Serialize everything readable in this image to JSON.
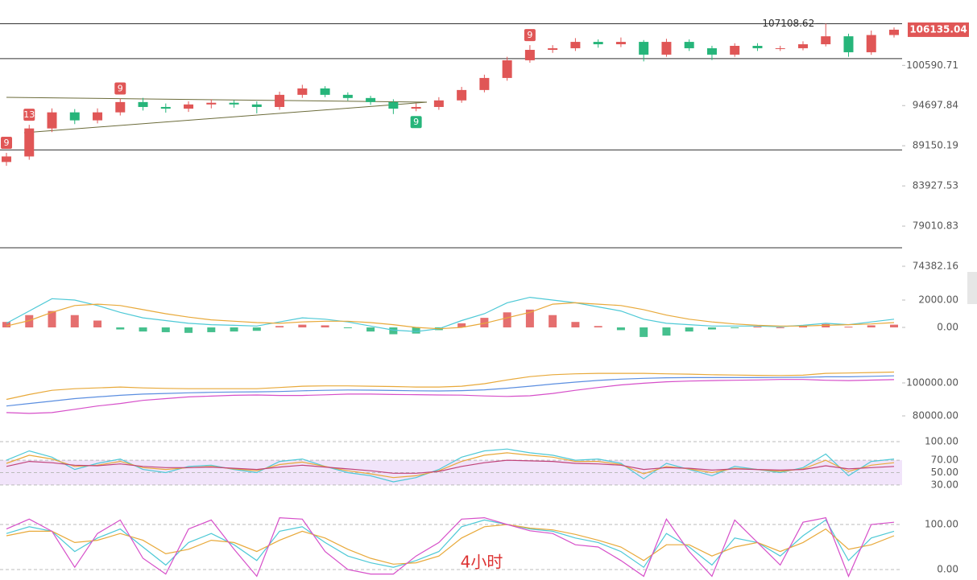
{
  "chart_data": [
    {
      "type": "candlestick",
      "log": true,
      "ylim": [
        73578,
        110980
      ],
      "yticks": [
        100590.71,
        94697.84,
        89150.19,
        83927.53,
        79010.83,
        74382.16
      ],
      "up_color": "#e05656",
      "down_color": "#26b57a",
      "open": [
        87000,
        87730,
        91500,
        93740,
        92620,
        93740,
        95200,
        94500,
        94260,
        94860,
        95100,
        94860,
        94500,
        96240,
        97170,
        96240,
        95780,
        95200,
        94260,
        94500,
        95440,
        96940,
        98710,
        101370,
        102970,
        103220,
        104210,
        103840,
        104210,
        102230,
        104210,
        103220,
        102230,
        103590,
        103220,
        103220,
        103840,
        105090,
        102600,
        105290
      ],
      "high": [
        88200,
        92000,
        94300,
        94200,
        94300,
        95700,
        95800,
        95000,
        95300,
        95600,
        95500,
        95300,
        96700,
        97700,
        97500,
        96600,
        96100,
        95600,
        95000,
        95900,
        97400,
        99200,
        101900,
        103700,
        103700,
        104800,
        104600,
        104900,
        104500,
        104700,
        104600,
        103600,
        104000,
        104000,
        103600,
        104300,
        107108.62,
        105500,
        106000,
        106500
      ],
      "low": [
        86500,
        87300,
        91000,
        92100,
        92200,
        93300,
        94000,
        93700,
        93800,
        94300,
        94400,
        93600,
        94100,
        95800,
        95900,
        95400,
        94800,
        93500,
        93900,
        94100,
        95100,
        96600,
        98300,
        101000,
        102500,
        102800,
        103300,
        103400,
        101200,
        101900,
        102800,
        101400,
        101900,
        102800,
        102800,
        102900,
        103500,
        101900,
        102200,
        104900
      ],
      "close": [
        87730,
        91500,
        93740,
        92620,
        93740,
        95200,
        94500,
        94260,
        94860,
        95100,
        94860,
        94500,
        96240,
        97170,
        96240,
        95780,
        95200,
        94260,
        94500,
        95440,
        96940,
        98710,
        101370,
        102970,
        103220,
        104210,
        103840,
        104210,
        102230,
        104210,
        103220,
        102230,
        103590,
        103220,
        103220,
        103840,
        105090,
        102600,
        105290,
        106135.04
      ],
      "td_above": [
        "9",
        "13",
        null,
        null,
        null,
        "9",
        null,
        null,
        null,
        null,
        null,
        null,
        null,
        null,
        null,
        null,
        null,
        null,
        null,
        null,
        null,
        null,
        null,
        "9",
        null,
        null,
        null,
        null,
        null,
        null,
        null,
        null,
        null,
        null,
        null,
        null,
        null,
        null,
        null,
        null
      ],
      "td_below": [
        null,
        null,
        null,
        null,
        null,
        null,
        null,
        null,
        null,
        null,
        null,
        null,
        null,
        null,
        null,
        null,
        null,
        null,
        "9",
        null,
        null,
        null,
        null,
        null,
        null,
        null,
        null,
        null,
        null,
        null,
        null,
        null,
        null,
        null,
        null,
        null,
        null,
        null,
        null,
        null
      ],
      "levels": [
        107100,
        101620,
        88590,
        76480
      ],
      "high_marker": 107108.62,
      "last_price": 106135.04,
      "watermark": "4小时"
    },
    {
      "type": "combo",
      "ylim": [
        -1353,
        3647
      ],
      "yticks": [
        {
          "value": 2000,
          "label": "2000.00"
        },
        {
          "value": 0,
          "label": "0.00"
        }
      ],
      "series": [
        {
          "kind": "bar",
          "up_color": "#e05656",
          "down_color": "#26b57a",
          "values": [
            400,
            900,
            1200,
            900,
            500,
            -150,
            -300,
            -350,
            -400,
            -350,
            -300,
            -250,
            100,
            200,
            150,
            -50,
            -300,
            -500,
            -450,
            -200,
            300,
            700,
            1100,
            1300,
            900,
            400,
            100,
            -200,
            -700,
            -600,
            -300,
            -150,
            -50,
            50,
            0,
            100,
            250,
            50,
            150,
            200
          ]
        },
        {
          "kind": "line",
          "color": "#4ec9d6",
          "values": [
            300,
            1200,
            2100,
            2000,
            1600,
            1100,
            700,
            500,
            300,
            200,
            150,
            100,
            400,
            700,
            600,
            400,
            100,
            -200,
            -300,
            -100,
            500,
            1000,
            1800,
            2200,
            2000,
            1800,
            1500,
            1200,
            600,
            300,
            200,
            100,
            100,
            100,
            50,
            150,
            300,
            200,
            400,
            600
          ]
        },
        {
          "kind": "line",
          "color": "#e8a93a",
          "values": [
            100,
            500,
            1100,
            1600,
            1700,
            1600,
            1300,
            1000,
            750,
            550,
            450,
            350,
            300,
            400,
            450,
            450,
            350,
            200,
            0,
            -100,
            0,
            300,
            700,
            1100,
            1700,
            1800,
            1700,
            1600,
            1300,
            900,
            600,
            400,
            250,
            150,
            100,
            100,
            150,
            200,
            250,
            350
          ]
        }
      ]
    },
    {
      "type": "line",
      "ylim": [
        73659,
        110244
      ],
      "yticks": [
        {
          "value": 100000,
          "label": "100000.00"
        },
        {
          "value": 80000,
          "label": "80000.00"
        }
      ],
      "series": [
        {
          "kind": "line",
          "color": "#e8a93a",
          "values": [
            90000,
            93000,
            95500,
            96500,
            97000,
            97500,
            97000,
            96700,
            96500,
            96500,
            96500,
            96500,
            97200,
            98000,
            98200,
            98200,
            98000,
            97800,
            97500,
            97500,
            98000,
            99500,
            101800,
            103800,
            105000,
            105500,
            105800,
            105800,
            105800,
            105500,
            105300,
            105000,
            104800,
            104600,
            104500,
            104700,
            105800,
            106000,
            106300,
            106600
          ]
        },
        {
          "kind": "line",
          "color": "#5b8ee0",
          "values": [
            86000,
            87500,
            89000,
            90500,
            91500,
            92500,
            93200,
            93600,
            94000,
            94300,
            94500,
            94600,
            94800,
            95200,
            95500,
            95700,
            95600,
            95400,
            95200,
            95100,
            95300,
            95800,
            96800,
            98000,
            99300,
            100500,
            101500,
            102300,
            102800,
            103100,
            103200,
            103200,
            103200,
            103200,
            103300,
            103400,
            103700,
            103700,
            104000,
            104300
          ]
        },
        {
          "kind": "line",
          "color": "#d64fc9",
          "values": [
            82000,
            81500,
            82000,
            84000,
            86000,
            87500,
            89400,
            90500,
            91500,
            92000,
            92500,
            92700,
            92400,
            92400,
            92800,
            93200,
            93200,
            93000,
            92900,
            92700,
            92600,
            92100,
            91800,
            92200,
            93600,
            95500,
            97200,
            98800,
            99800,
            100700,
            101100,
            101400,
            101600,
            101800,
            102100,
            102100,
            101600,
            101400,
            101700,
            102000
          ]
        }
      ]
    },
    {
      "type": "line",
      "ylim": [
        0,
        100
      ],
      "band": [
        30,
        70
      ],
      "band_color": "#f1e4fa",
      "grid": true,
      "yticks": [
        {
          "value": 100,
          "label": "100.00"
        },
        {
          "value": 70,
          "label": "70.00"
        },
        {
          "value": 50,
          "label": "50.00"
        },
        {
          "value": 30,
          "label": "30.00"
        }
      ],
      "series": [
        {
          "kind": "line",
          "color": "#4ec9d6",
          "values": [
            70,
            85,
            75,
            55,
            65,
            72,
            55,
            50,
            60,
            62,
            55,
            50,
            68,
            72,
            60,
            50,
            45,
            35,
            42,
            55,
            75,
            85,
            88,
            82,
            78,
            70,
            72,
            65,
            40,
            65,
            55,
            45,
            60,
            55,
            50,
            58,
            80,
            45,
            68,
            72
          ]
        },
        {
          "kind": "line",
          "color": "#e8a93a",
          "values": [
            65,
            78,
            72,
            60,
            62,
            68,
            58,
            55,
            58,
            60,
            56,
            53,
            63,
            67,
            60,
            53,
            48,
            42,
            45,
            53,
            68,
            78,
            82,
            78,
            75,
            68,
            68,
            63,
            48,
            60,
            56,
            50,
            57,
            55,
            52,
            56,
            70,
            52,
            62,
            66
          ]
        },
        {
          "kind": "line",
          "color": "#c0437a",
          "values": [
            60,
            68,
            66,
            62,
            61,
            64,
            60,
            58,
            58,
            59,
            57,
            55,
            59,
            62,
            59,
            56,
            53,
            49,
            49,
            52,
            60,
            66,
            70,
            69,
            68,
            65,
            64,
            62,
            55,
            58,
            57,
            54,
            56,
            55,
            54,
            55,
            61,
            56,
            58,
            60
          ]
        }
      ]
    },
    {
      "type": "line",
      "ylim": [
        -19.6,
        121.4
      ],
      "grid": true,
      "yticks": [
        {
          "value": 100,
          "label": "100.00"
        },
        {
          "value": 0,
          "label": "0.00"
        }
      ],
      "series": [
        {
          "kind": "line",
          "color": "#4ec9d6",
          "values": [
            80,
            95,
            85,
            40,
            70,
            90,
            50,
            10,
            60,
            80,
            55,
            20,
            85,
            95,
            60,
            30,
            15,
            5,
            20,
            40,
            95,
            110,
            100,
            90,
            85,
            70,
            60,
            40,
            5,
            80,
            50,
            10,
            70,
            60,
            30,
            75,
            110,
            20,
            70,
            85
          ]
        },
        {
          "kind": "line",
          "color": "#e8a93a",
          "values": [
            75,
            85,
            85,
            60,
            65,
            80,
            65,
            35,
            45,
            65,
            60,
            40,
            65,
            85,
            70,
            45,
            25,
            12,
            15,
            30,
            70,
            95,
            100,
            92,
            88,
            78,
            65,
            50,
            20,
            55,
            55,
            30,
            50,
            60,
            40,
            60,
            90,
            45,
            55,
            75
          ]
        },
        {
          "kind": "line",
          "color": "#d64fc9",
          "values": [
            90,
            112,
            85,
            5,
            80,
            110,
            25,
            -10,
            90,
            110,
            45,
            -15,
            115,
            112,
            40,
            0,
            -10,
            -10,
            30,
            60,
            112,
            115,
            100,
            86,
            80,
            55,
            50,
            20,
            -15,
            112,
            40,
            -15,
            110,
            60,
            10,
            105,
            115,
            -15,
            100,
            105
          ]
        }
      ]
    }
  ]
}
